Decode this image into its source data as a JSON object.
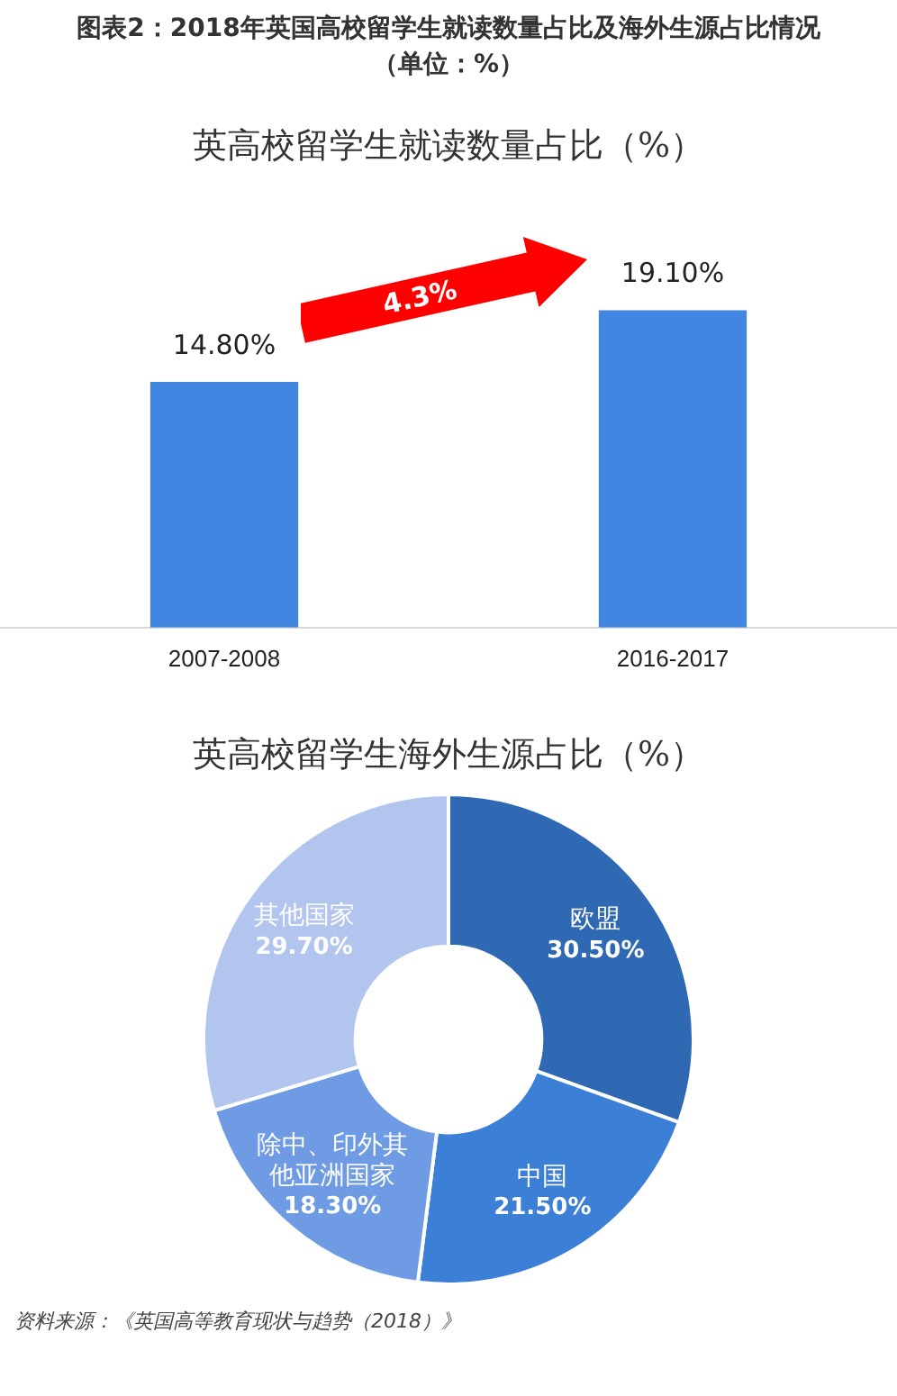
{
  "chart_data": [
    {
      "type": "bar",
      "title": "图表2：2018年英国高校留学生就读数量占比及海外生源占比情况（单位：%）",
      "subtitle": "英高校留学生就读数量占比（%）",
      "categories": [
        "2007-2008",
        "2016-2017"
      ],
      "values": [
        14.8,
        19.1
      ],
      "color": "#4186e0",
      "value_labels": [
        "14.80%",
        "19.10%"
      ],
      "annotations": [
        "4.3%"
      ],
      "grid": false,
      "legend": false
    },
    {
      "type": "donut",
      "title": "英高校留学生海外生源占比（%）",
      "categories": [
        "欧盟",
        "中国",
        "除中、印外其他亚洲国家",
        "其他国家"
      ],
      "values": [
        30.5,
        21.5,
        18.3,
        29.7
      ],
      "colors": [
        "#2f68b3",
        "#3b7fd6",
        "#6e9be3",
        "#b1c5ee"
      ],
      "value_labels": [
        "30.50%",
        "21.50%",
        "18.30%",
        "29.70%"
      ],
      "legend": false,
      "annotations": [
        "资料来源：《英国高等教育现状与趋势（2018）》"
      ]
    }
  ]
}
